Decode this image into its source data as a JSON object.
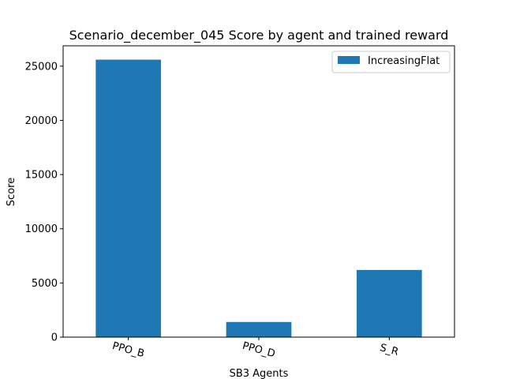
{
  "chart_data": {
    "type": "bar",
    "title": "Scenario_december_045 Score by agent and trained reward",
    "xlabel": "SB3 Agents",
    "ylabel": "Score",
    "categories": [
      "PPO_B",
      "PPO_D",
      "S_R"
    ],
    "series": [
      {
        "name": "IncreasingFlat",
        "values": [
          25600,
          1400,
          6200
        ],
        "color": "#1f77b4"
      }
    ],
    "ylim": [
      0,
      26880
    ],
    "yticks": [
      0,
      5000,
      10000,
      15000,
      20000,
      25000
    ],
    "ytick_labels": [
      "0",
      "5000",
      "10000",
      "15000",
      "20000",
      "25000"
    ],
    "grid": false,
    "legend_position": "top-right"
  }
}
